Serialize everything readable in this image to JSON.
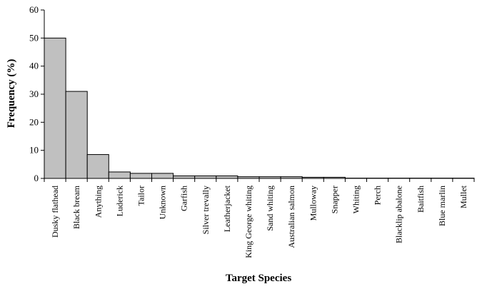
{
  "chart_data": {
    "type": "bar",
    "title": "",
    "xlabel": "Target Species",
    "ylabel": "Frequency (%)",
    "ylim": [
      0,
      60
    ],
    "yticks": [
      0,
      10,
      20,
      30,
      40,
      50,
      60
    ],
    "grid": false,
    "legend": "none",
    "bar_color": "#c0c0c0",
    "categories": [
      "Dusky flathead",
      "Black bream",
      "Anything",
      "Luderick",
      "Tailor",
      "Unknown",
      "Garfish",
      "Silver trevally",
      "Leatherjacket",
      "King George whiting",
      "Sand whiting",
      "Australian salmon",
      "Mulloway",
      "Snapper",
      "Whiting",
      "Perch",
      "Blacklip abalone",
      "Baitfish",
      "Blue marlin",
      "Mullet"
    ],
    "values": [
      50,
      31,
      8.5,
      2.3,
      1.8,
      1.8,
      0.9,
      0.9,
      0.9,
      0.6,
      0.6,
      0.6,
      0.4,
      0.4,
      0.1,
      0.1,
      0.1,
      0.1,
      0.1,
      0.1
    ]
  }
}
